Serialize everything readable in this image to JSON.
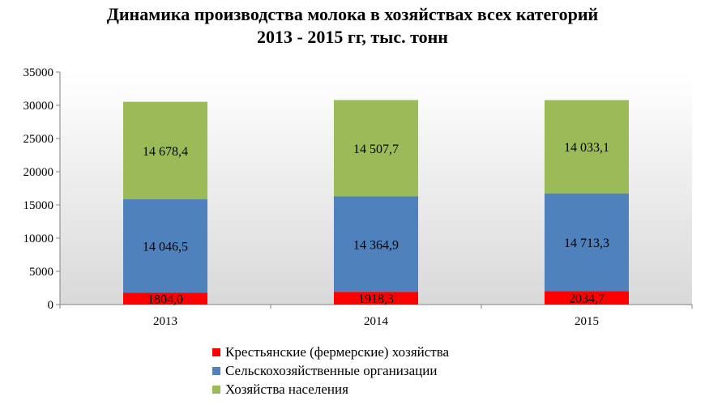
{
  "chart_data": {
    "type": "bar",
    "stacked": true,
    "title": [
      "Динамика  производства молока в хозяйствах всех категорий",
      "2013 - 2015 гг, тыс. тонн"
    ],
    "categories": [
      "2013",
      "2014",
      "2015"
    ],
    "series": [
      {
        "name": "Крестьянские (фермерские)  хозяйства",
        "color": "#ff0000",
        "values": [
          1804.0,
          1918.3,
          2034.7
        ],
        "labels": [
          "1804,0",
          "1918,3",
          "2034,7"
        ]
      },
      {
        "name": "Сельскохозяйственные организации",
        "color": "#4f81bd",
        "values": [
          14046.5,
          14364.9,
          14713.3
        ],
        "labels": [
          "14 046,5",
          "14 364,9",
          "14 713,3"
        ]
      },
      {
        "name": "Хозяйства населения",
        "color": "#9bbb59",
        "values": [
          14678.4,
          14507.7,
          14033.1
        ],
        "labels": [
          "14 678,4",
          "14 507,7",
          "14 033,1"
        ]
      }
    ],
    "ylim": [
      0,
      35000
    ],
    "yticks": [
      0,
      5000,
      10000,
      15000,
      20000,
      25000,
      30000,
      35000
    ],
    "legend": "bottom",
    "grid": false
  }
}
